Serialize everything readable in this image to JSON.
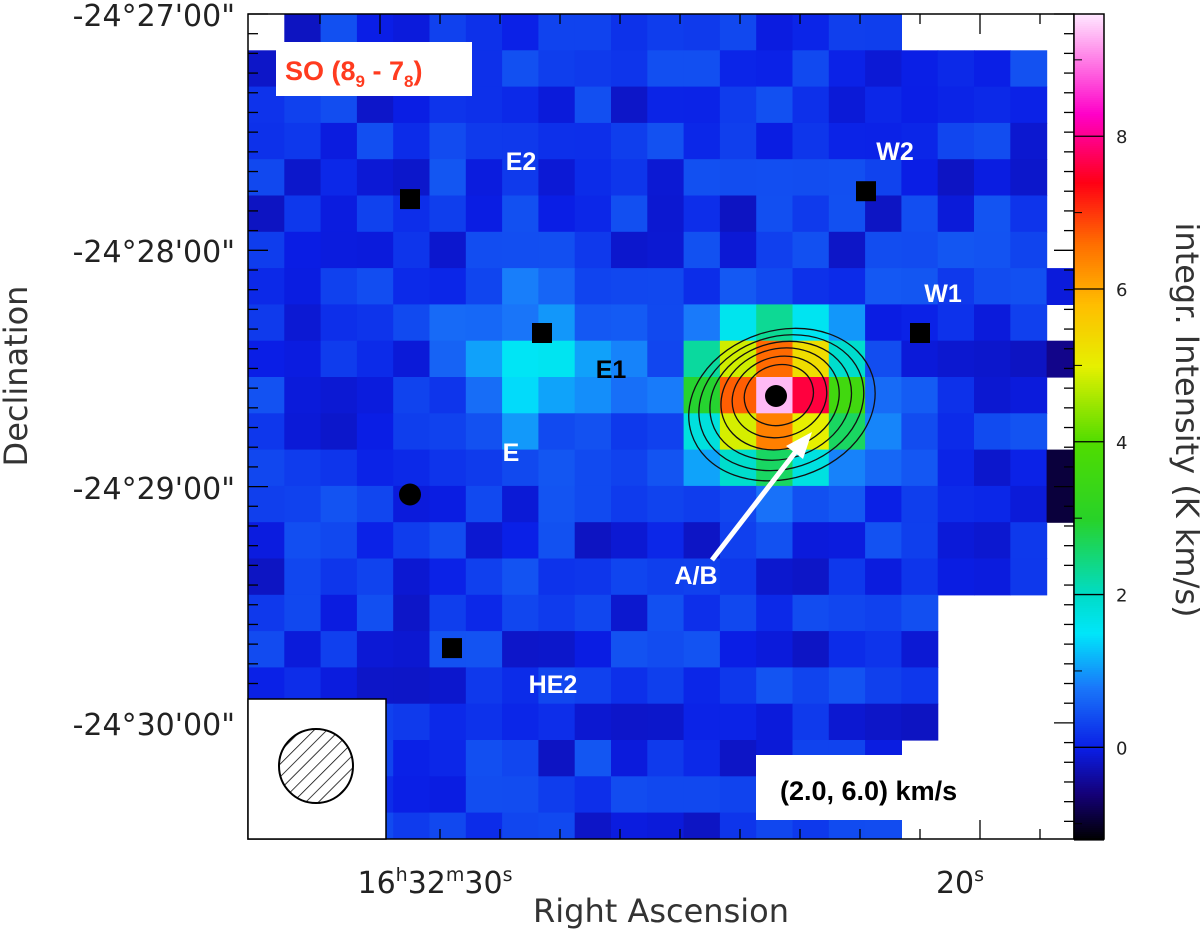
{
  "chart_data": {
    "type": "heatmap",
    "title": "",
    "line_label": {
      "molecule": "SO (8",
      "up_sub": "9",
      "mid": " - 7",
      "lo_sub": "8",
      "close": ")"
    },
    "velocity_range_label": "(2.0, 6.0) km/s",
    "xlabel": "Right Ascension",
    "ylabel": "Declination",
    "colorbar_label": "integr. Intensity (K km/s)",
    "colorbar_ticks": [
      "0",
      "2",
      "4",
      "6",
      "8"
    ],
    "colorbar_range": [
      -1.2,
      9.6
    ],
    "x_tick_labels": [
      {
        "h": "16",
        "hu": "h",
        "m": "32",
        "mu": "m",
        "s": "30",
        "su": "s"
      },
      {
        "h": "",
        "hu": "",
        "m": "",
        "mu": "",
        "s": "20",
        "su": "s"
      }
    ],
    "y_tick_labels": [
      "-24°27'00\"",
      "-24°28'00\"",
      "-24°29'00\"",
      "-24°30'00\""
    ],
    "sources": [
      {
        "name": "E2",
        "marker": "square",
        "ra_s": 29.5,
        "dec": "-24:27:47"
      },
      {
        "name": "W2",
        "marker": "square",
        "ra_s": 21.9,
        "dec": "-24:27:45"
      },
      {
        "name": "W1",
        "marker": "square",
        "ra_s": 21.0,
        "dec": "-24:28:21"
      },
      {
        "name": "E1",
        "marker": "square",
        "ra_s": 27.3,
        "dec": "-24:28:21"
      },
      {
        "name": "E",
        "marker": "circle",
        "ra_s": 29.5,
        "dec": "-24:29:02"
      },
      {
        "name": "A/B",
        "marker": "circle",
        "ra_s": 23.4,
        "dec": "-24:28:37"
      },
      {
        "name": "HE2",
        "marker": "square",
        "ra_s": 28.8,
        "dec": "-24:29:41"
      }
    ],
    "peak": {
      "ra_s": 23.4,
      "dec": "-24:28:37",
      "value": 9.5
    },
    "beam": "hatched circle, lower-left"
  }
}
